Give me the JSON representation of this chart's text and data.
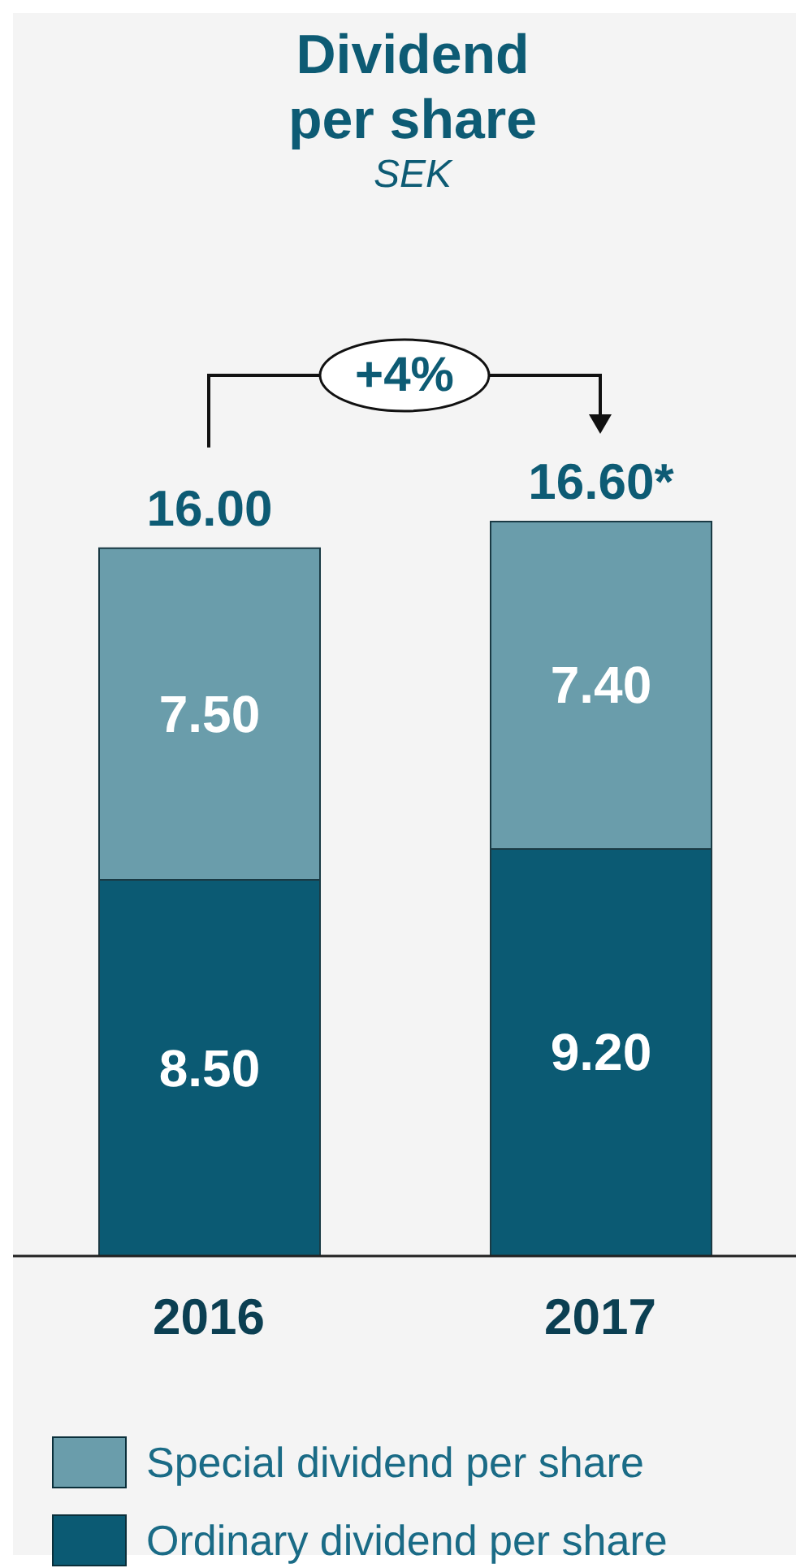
{
  "chart_data": {
    "type": "bar",
    "title": "Dividend per share",
    "subtitle": "SEK",
    "categories": [
      "2016",
      "2017"
    ],
    "stacked": true,
    "series": [
      {
        "name": "Ordinary dividend per share",
        "color": "#0b5a73",
        "values": [
          8.5,
          9.2
        ],
        "value_labels": [
          "8.50",
          "9.20"
        ]
      },
      {
        "name": "Special dividend per share",
        "color": "#6a9dab",
        "values": [
          7.5,
          7.4
        ],
        "value_labels": [
          "7.50",
          "7.40"
        ]
      }
    ],
    "totals": [
      "16.00",
      "16.60*"
    ],
    "annotations": [
      "+4%"
    ],
    "legend": "bottom",
    "grid": false
  }
}
